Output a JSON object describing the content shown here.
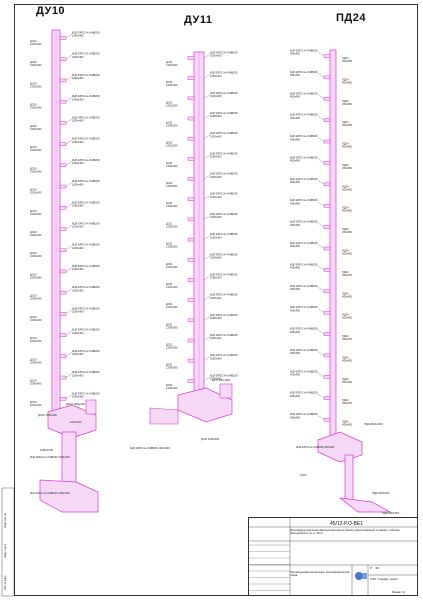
{
  "columns": [
    {
      "id": "du10",
      "title": "ДУ10"
    },
    {
      "id": "du11",
      "title": "ДУ11"
    },
    {
      "id": "pd24",
      "title": "ПД24"
    }
  ],
  "du10": {
    "tag": "КЦП-ЕРОС-Н-II-МВ200",
    "size_label": "1000х400",
    "floor_label": "ДО10",
    "floor_size": "1000х400",
    "count": 18,
    "bottom_notes": [
      "ДО10 1000х400",
      "ДО10 1000х400",
      "1000х400",
      "КЦП-ЕРОС-Н-II-МВ200 1000х400",
      "1250х1000",
      "КЦП-ЕРОС-Н-II-МВ200 1250х250"
    ]
  },
  "du11": {
    "tag": "КЦП-ЕРОС-Н-II-МВ200",
    "size_label": "1000х400",
    "floor_label": "ДО11",
    "floor_size": "1200х300",
    "count": 17,
    "bottom_notes": [
      "ДУ11 800х1250",
      "ДУ11 1250х300",
      "КЦП-ЕРОС-Н-II-МВ200 1200х300"
    ]
  },
  "pd24": {
    "tag": "КЦП-ЕРОС-Н-II-МВ200",
    "size_label": "450х450",
    "floor_label": "ПД24",
    "floor_size": "450х450",
    "count": 18,
    "bottom_notes": [
      "КЦП-ЕРОС-Н-II-МВ200 450х300",
      "ПД24 800х1000",
      "0,000",
      "ПД24 800х400",
      "ПД24 600х300"
    ]
  },
  "stamp": {
    "code": "45/12-Р.О-ВЕ1",
    "title": "Многофункциональный административный объект (расположенный по адресу г.Москва, Ленинградский пр-т, 36-1)",
    "sheet_name": "Противодымная вентиляция. Аксонометрическая схема",
    "stage": "Р",
    "sheet": "16",
    "org": "ООО \"Стандарт проект\"",
    "format": "Формат А1"
  },
  "margin": [
    "Взам. инв. №",
    "Подп. и дата",
    "Инв. № подл."
  ],
  "colors": {
    "duct": "#d63ad6",
    "duct_fill": "#f7d8f7",
    "line": "#333333",
    "text": "#222222"
  }
}
